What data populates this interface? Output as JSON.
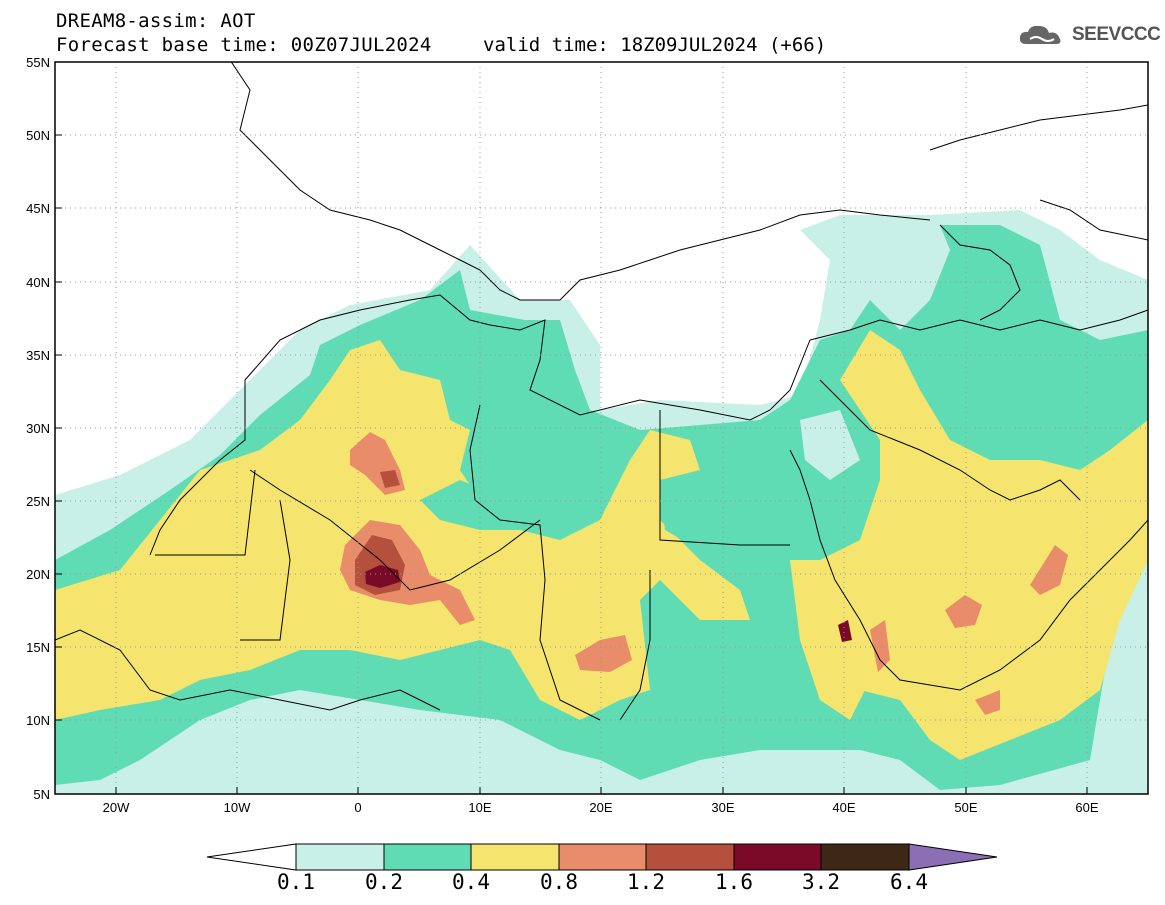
{
  "header": {
    "title": "DREAM8-assim: AOT",
    "base_time": "Forecast base time: 00Z07JUL2024",
    "valid_time": "valid time: 18Z09JUL2024 (+66)"
  },
  "logo": {
    "text": "SEEVCCC",
    "icon": "cloud-logo-icon"
  },
  "map": {
    "lat_labels": [
      "55N",
      "50N",
      "45N",
      "40N",
      "35N",
      "30N",
      "25N",
      "20N",
      "15N",
      "10N",
      "5N"
    ],
    "lon_labels": [
      "20W",
      "10W",
      "0",
      "10E",
      "20E",
      "30E",
      "40E",
      "50E",
      "60E"
    ],
    "lat_range": [
      5,
      55
    ],
    "lon_range": [
      -25,
      65
    ],
    "grid": "dotted"
  },
  "colorbar": {
    "labels": [
      "0.1",
      "0.2",
      "0.4",
      "0.8",
      "1.2",
      "1.6",
      "3.2",
      "6.4"
    ],
    "colors": [
      "#ffffff",
      "#c8f0e6",
      "#5fdcb4",
      "#f5e46e",
      "#e88c6a",
      "#b4503c",
      "#7a0a28",
      "#3c2814",
      "#8c6eb4"
    ]
  }
}
